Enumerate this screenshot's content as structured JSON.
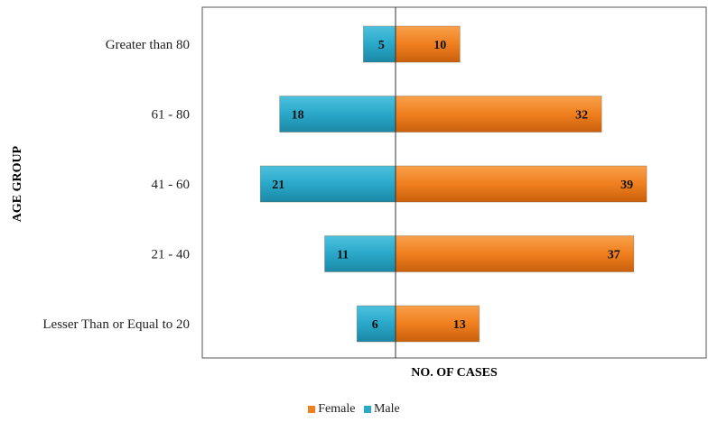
{
  "chart_data": {
    "type": "bar",
    "orientation": "horizontal-diverging",
    "categories": [
      "Greater than 80",
      "61 - 80",
      "41 - 60",
      "21 - 40",
      "Lesser Than or Equal to 20"
    ],
    "series": [
      {
        "name": "Female",
        "values": [
          10,
          32,
          39,
          37,
          13
        ],
        "color": "#F07F1F",
        "direction": "right"
      },
      {
        "name": "Male",
        "values": [
          5,
          18,
          21,
          11,
          6
        ],
        "color": "#2AA8C9",
        "direction": "left"
      }
    ],
    "xlabel": "NO. OF CASES",
    "ylabel": "AGE GROUP",
    "legend_position": "bottom",
    "grid": false
  }
}
